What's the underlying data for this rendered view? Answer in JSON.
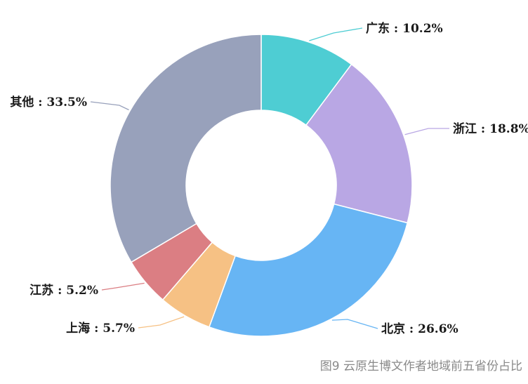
{
  "chart_data": {
    "type": "pie",
    "donut": true,
    "categories": [
      "广东",
      "浙江",
      "北京",
      "上海",
      "江苏",
      "其他"
    ],
    "values": [
      10.2,
      18.8,
      26.6,
      5.7,
      5.2,
      33.5
    ],
    "unit": "%",
    "labels": [
      "广东 : 10.2%",
      "浙江 : 18.8%",
      "北京 : 26.6%",
      "上海 : 5.7%",
      "江苏 : 5.2%",
      "其他 : 33.5%"
    ],
    "colors": [
      "#4ecdd3",
      "#b9a7e4",
      "#67b5f4",
      "#f6c184",
      "#db7e83",
      "#98a1bb"
    ],
    "caption": "图9  云原生博文作者地域前五省份占比"
  }
}
